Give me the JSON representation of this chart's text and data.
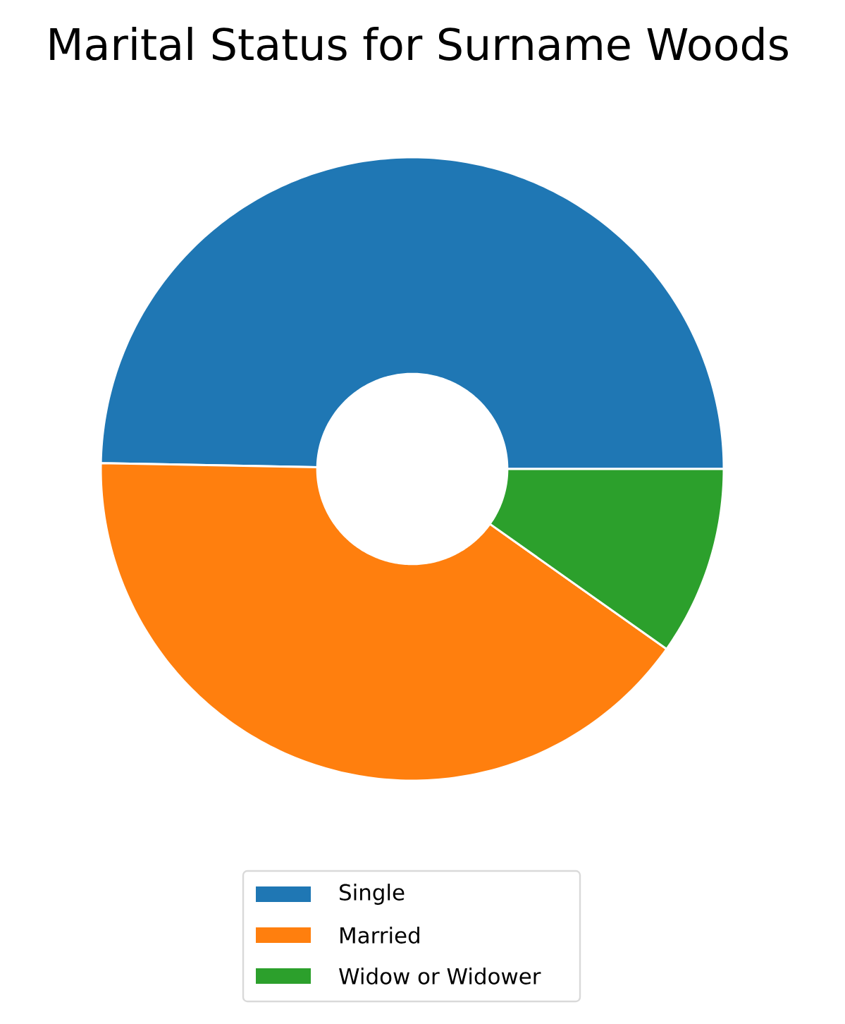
{
  "chart_data": {
    "type": "donut",
    "title": "Marital Status for Surname Woods",
    "categories": [
      "Single",
      "Married",
      "Widow or Widower"
    ],
    "values": [
      49.7,
      40.5,
      9.8
    ],
    "colors": [
      "#1f77b4",
      "#ff7f0e",
      "#2ca02c"
    ],
    "legend": "bottom"
  }
}
